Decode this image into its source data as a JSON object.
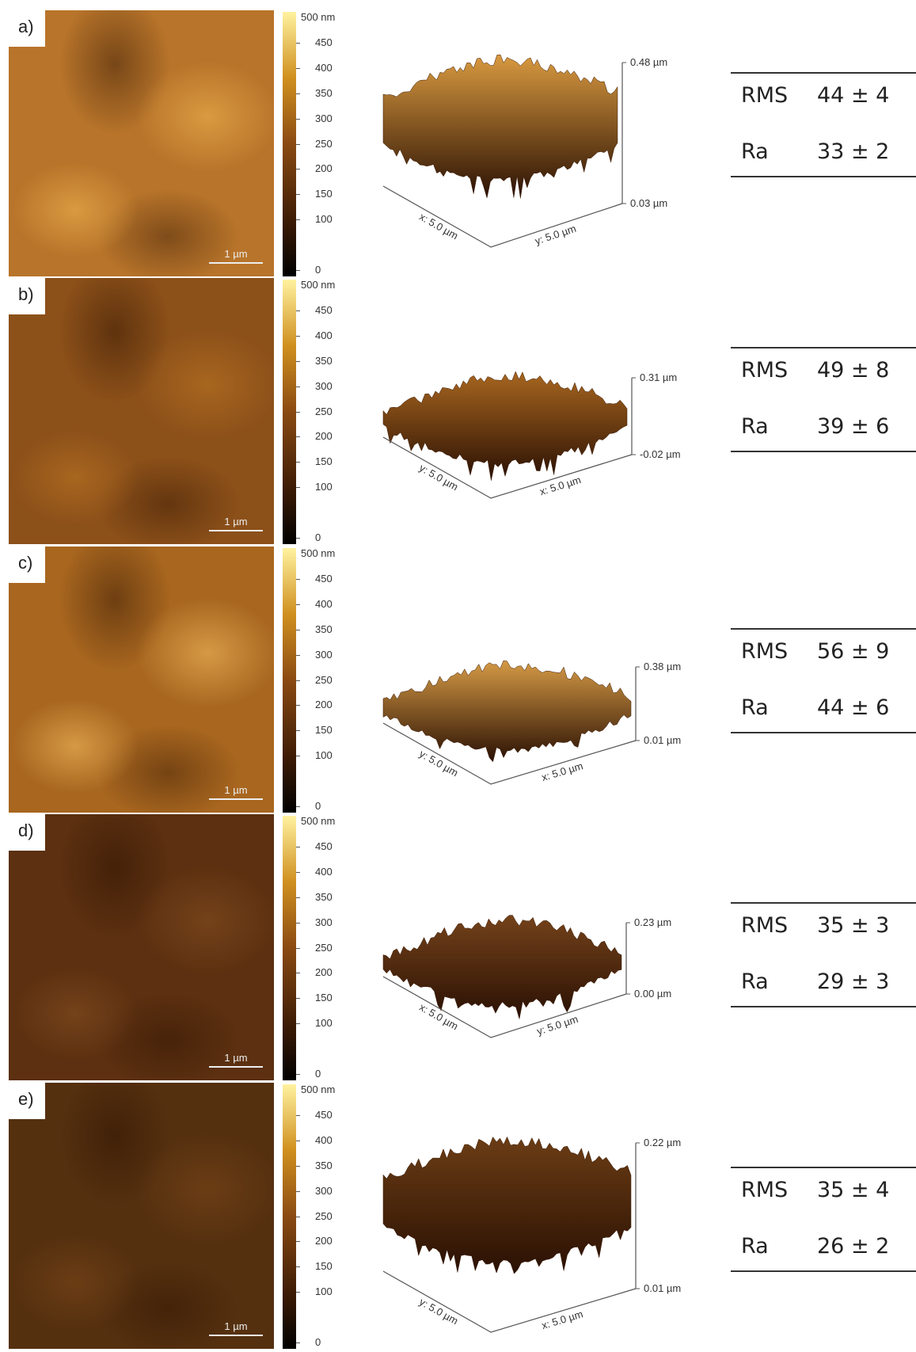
{
  "colorbar": {
    "top_label": "500 nm",
    "ticks": [
      450,
      400,
      350,
      300,
      250,
      200,
      150,
      100,
      0
    ]
  },
  "panels": [
    {
      "label": "a)",
      "scale_bar": "1 µm",
      "surface": {
        "z_max": "0.48 µm",
        "z_min": "0.03 µm",
        "left_axis": "x: 5.0 µm",
        "right_axis": "y: 5.0 µm"
      },
      "table": [
        [
          "RMS",
          "44 ± 4"
        ],
        [
          "Ra",
          "33 ± 2"
        ]
      ]
    },
    {
      "label": "b)",
      "scale_bar": "1 µm",
      "surface": {
        "z_max": "0.31 µm",
        "z_min": "-0.02 µm",
        "left_axis": "y: 5.0 µm",
        "right_axis": "x: 5.0 µm"
      },
      "table": [
        [
          "RMS",
          "49 ± 8"
        ],
        [
          "Ra",
          "39 ± 6"
        ]
      ]
    },
    {
      "label": "c)",
      "scale_bar": "1 µm",
      "surface": {
        "z_max": "0.38 µm",
        "z_min": "0.01 µm",
        "left_axis": "y: 5.0 µm",
        "right_axis": "x: 5.0 µm"
      },
      "table": [
        [
          "RMS",
          "56 ± 9"
        ],
        [
          "Ra",
          "44 ± 6"
        ]
      ]
    },
    {
      "label": "d)",
      "scale_bar": "1 µm",
      "surface": {
        "z_max": "0.23 µm",
        "z_min": "0.00 µm",
        "left_axis": "x: 5.0 µm",
        "right_axis": "y: 5.0 µm"
      },
      "table": [
        [
          "RMS",
          "35 ± 3"
        ],
        [
          "Ra",
          "29 ± 3"
        ]
      ]
    },
    {
      "label": "e)",
      "scale_bar": "1 µm",
      "surface": {
        "z_max": "0.22 µm",
        "z_min": "0.01 µm",
        "left_axis": "y: 5.0 µm",
        "right_axis": "x: 5.0 µm"
      },
      "table": [
        [
          "RMS",
          "35 ± 4"
        ],
        [
          "Ra",
          "26 ± 2"
        ]
      ]
    }
  ]
}
